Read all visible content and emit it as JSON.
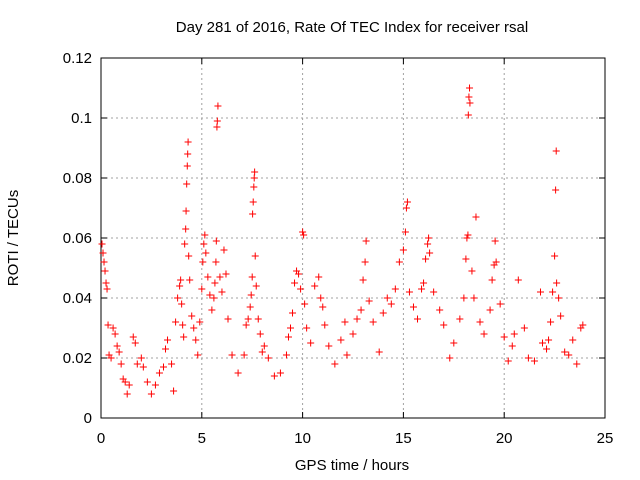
{
  "chart_data": {
    "type": "scatter",
    "title": "Day 281 of 2016, Rate Of TEC Index for receiver rsal",
    "xlabel": "GPS time / hours",
    "ylabel": "ROTI / TECUs",
    "xlim": [
      0,
      25
    ],
    "ylim": [
      0,
      0.12
    ],
    "x_ticks": [
      0,
      5,
      10,
      15,
      20,
      25
    ],
    "x_tick_labels": [
      "0",
      "5",
      "10",
      "15",
      "20",
      "25"
    ],
    "y_ticks": [
      0,
      0.02,
      0.04,
      0.06,
      0.08,
      0.1,
      0.12
    ],
    "y_tick_labels": [
      "0",
      "0.02",
      "0.04",
      "0.06",
      "0.08",
      "0.1",
      "0.12"
    ],
    "grid": true,
    "marker": "+",
    "series": [
      {
        "name": "ROTI",
        "color": "#ff0000",
        "points": [
          [
            0.05,
            0.058
          ],
          [
            0.1,
            0.055
          ],
          [
            0.15,
            0.052
          ],
          [
            0.2,
            0.049
          ],
          [
            0.25,
            0.045
          ],
          [
            0.3,
            0.043
          ],
          [
            0.35,
            0.031
          ],
          [
            0.4,
            0.021
          ],
          [
            0.5,
            0.02
          ],
          [
            0.6,
            0.03
          ],
          [
            0.7,
            0.028
          ],
          [
            0.8,
            0.024
          ],
          [
            0.9,
            0.022
          ],
          [
            1.0,
            0.018
          ],
          [
            1.1,
            0.013
          ],
          [
            1.2,
            0.012
          ],
          [
            1.3,
            0.008
          ],
          [
            1.4,
            0.011
          ],
          [
            1.6,
            0.027
          ],
          [
            1.7,
            0.025
          ],
          [
            1.8,
            0.018
          ],
          [
            2.0,
            0.02
          ],
          [
            2.1,
            0.017
          ],
          [
            2.3,
            0.012
          ],
          [
            2.5,
            0.008
          ],
          [
            2.7,
            0.011
          ],
          [
            2.9,
            0.015
          ],
          [
            3.1,
            0.017
          ],
          [
            3.2,
            0.023
          ],
          [
            3.3,
            0.026
          ],
          [
            3.5,
            0.018
          ],
          [
            3.6,
            0.009
          ],
          [
            3.7,
            0.032
          ],
          [
            3.8,
            0.04
          ],
          [
            3.9,
            0.044
          ],
          [
            3.95,
            0.046
          ],
          [
            4.0,
            0.038
          ],
          [
            4.05,
            0.031
          ],
          [
            4.1,
            0.027
          ],
          [
            4.15,
            0.058
          ],
          [
            4.2,
            0.063
          ],
          [
            4.22,
            0.069
          ],
          [
            4.25,
            0.078
          ],
          [
            4.28,
            0.084
          ],
          [
            4.3,
            0.088
          ],
          [
            4.32,
            0.092
          ],
          [
            4.35,
            0.054
          ],
          [
            4.4,
            0.046
          ],
          [
            4.5,
            0.034
          ],
          [
            4.6,
            0.03
          ],
          [
            4.7,
            0.026
          ],
          [
            4.8,
            0.021
          ],
          [
            4.9,
            0.032
          ],
          [
            5.0,
            0.043
          ],
          [
            5.05,
            0.052
          ],
          [
            5.1,
            0.058
          ],
          [
            5.15,
            0.061
          ],
          [
            5.2,
            0.055
          ],
          [
            5.3,
            0.047
          ],
          [
            5.4,
            0.041
          ],
          [
            5.5,
            0.036
          ],
          [
            5.6,
            0.04
          ],
          [
            5.65,
            0.045
          ],
          [
            5.7,
            0.052
          ],
          [
            5.72,
            0.059
          ],
          [
            5.75,
            0.097
          ],
          [
            5.77,
            0.099
          ],
          [
            5.8,
            0.104
          ],
          [
            5.9,
            0.047
          ],
          [
            6.0,
            0.042
          ],
          [
            6.1,
            0.056
          ],
          [
            6.2,
            0.048
          ],
          [
            6.3,
            0.033
          ],
          [
            6.5,
            0.021
          ],
          [
            6.8,
            0.015
          ],
          [
            7.1,
            0.021
          ],
          [
            7.2,
            0.031
          ],
          [
            7.3,
            0.033
          ],
          [
            7.4,
            0.037
          ],
          [
            7.45,
            0.041
          ],
          [
            7.5,
            0.047
          ],
          [
            7.52,
            0.068
          ],
          [
            7.55,
            0.072
          ],
          [
            7.58,
            0.077
          ],
          [
            7.6,
            0.08
          ],
          [
            7.62,
            0.082
          ],
          [
            7.65,
            0.054
          ],
          [
            7.7,
            0.044
          ],
          [
            7.8,
            0.033
          ],
          [
            7.9,
            0.028
          ],
          [
            8.0,
            0.022
          ],
          [
            8.1,
            0.024
          ],
          [
            8.3,
            0.02
          ],
          [
            8.6,
            0.014
          ],
          [
            8.9,
            0.015
          ],
          [
            9.2,
            0.021
          ],
          [
            9.3,
            0.027
          ],
          [
            9.4,
            0.03
          ],
          [
            9.5,
            0.035
          ],
          [
            9.6,
            0.045
          ],
          [
            9.7,
            0.049
          ],
          [
            9.8,
            0.048
          ],
          [
            9.9,
            0.043
          ],
          [
            10.0,
            0.062
          ],
          [
            10.05,
            0.061
          ],
          [
            10.1,
            0.038
          ],
          [
            10.2,
            0.03
          ],
          [
            10.4,
            0.025
          ],
          [
            10.6,
            0.044
          ],
          [
            10.8,
            0.047
          ],
          [
            10.9,
            0.04
          ],
          [
            11.0,
            0.037
          ],
          [
            11.1,
            0.031
          ],
          [
            11.3,
            0.024
          ],
          [
            11.6,
            0.018
          ],
          [
            11.9,
            0.026
          ],
          [
            12.1,
            0.032
          ],
          [
            12.2,
            0.021
          ],
          [
            12.5,
            0.028
          ],
          [
            12.7,
            0.033
          ],
          [
            12.9,
            0.036
          ],
          [
            13.0,
            0.046
          ],
          [
            13.1,
            0.052
          ],
          [
            13.15,
            0.059
          ],
          [
            13.3,
            0.039
          ],
          [
            13.5,
            0.032
          ],
          [
            13.8,
            0.022
          ],
          [
            14.0,
            0.035
          ],
          [
            14.2,
            0.04
          ],
          [
            14.4,
            0.038
          ],
          [
            14.6,
            0.043
          ],
          [
            14.8,
            0.052
          ],
          [
            15.0,
            0.056
          ],
          [
            15.1,
            0.062
          ],
          [
            15.15,
            0.07
          ],
          [
            15.2,
            0.072
          ],
          [
            15.3,
            0.042
          ],
          [
            15.5,
            0.037
          ],
          [
            15.7,
            0.033
          ],
          [
            15.9,
            0.043
          ],
          [
            16.0,
            0.045
          ],
          [
            16.1,
            0.053
          ],
          [
            16.2,
            0.058
          ],
          [
            16.25,
            0.06
          ],
          [
            16.3,
            0.055
          ],
          [
            16.5,
            0.042
          ],
          [
            16.8,
            0.036
          ],
          [
            17.0,
            0.031
          ],
          [
            17.3,
            0.02
          ],
          [
            17.5,
            0.025
          ],
          [
            17.8,
            0.033
          ],
          [
            18.0,
            0.04
          ],
          [
            18.1,
            0.053
          ],
          [
            18.15,
            0.06
          ],
          [
            18.2,
            0.061
          ],
          [
            18.22,
            0.101
          ],
          [
            18.25,
            0.107
          ],
          [
            18.28,
            0.11
          ],
          [
            18.3,
            0.105
          ],
          [
            18.4,
            0.049
          ],
          [
            18.5,
            0.04
          ],
          [
            18.6,
            0.067
          ],
          [
            18.8,
            0.032
          ],
          [
            19.0,
            0.028
          ],
          [
            19.3,
            0.036
          ],
          [
            19.4,
            0.046
          ],
          [
            19.5,
            0.051
          ],
          [
            19.55,
            0.059
          ],
          [
            19.6,
            0.052
          ],
          [
            19.8,
            0.038
          ],
          [
            20.0,
            0.027
          ],
          [
            20.2,
            0.019
          ],
          [
            20.4,
            0.024
          ],
          [
            20.5,
            0.028
          ],
          [
            20.7,
            0.046
          ],
          [
            21.0,
            0.03
          ],
          [
            21.2,
            0.02
          ],
          [
            21.5,
            0.019
          ],
          [
            21.8,
            0.042
          ],
          [
            21.9,
            0.025
          ],
          [
            22.1,
            0.023
          ],
          [
            22.2,
            0.026
          ],
          [
            22.3,
            0.032
          ],
          [
            22.4,
            0.042
          ],
          [
            22.5,
            0.054
          ],
          [
            22.55,
            0.076
          ],
          [
            22.58,
            0.089
          ],
          [
            22.6,
            0.045
          ],
          [
            22.7,
            0.04
          ],
          [
            22.8,
            0.034
          ],
          [
            23.0,
            0.022
          ],
          [
            23.2,
            0.021
          ],
          [
            23.4,
            0.026
          ],
          [
            23.6,
            0.018
          ],
          [
            23.8,
            0.03
          ],
          [
            23.9,
            0.031
          ]
        ]
      }
    ]
  }
}
